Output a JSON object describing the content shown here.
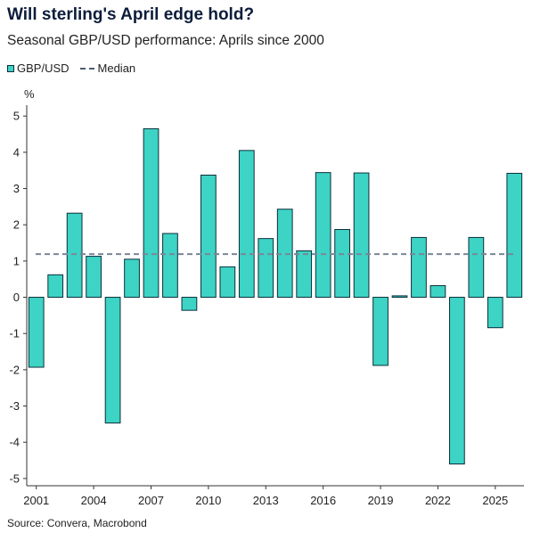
{
  "chart_data": {
    "type": "bar",
    "title": "Will sterling's April edge hold?",
    "subtitle": "Seasonal GBP/USD performance: Aprils since 2000",
    "ylabel": "%",
    "xlabel": "",
    "source": "Source: Convera, Macrobond",
    "ylim": [
      -5.2,
      5.3
    ],
    "yticks": [
      "5",
      "4",
      "3",
      "2",
      "1",
      "0",
      "-1",
      "-2",
      "-3",
      "-4",
      "-5"
    ],
    "ytick_values": [
      5,
      4,
      3,
      2,
      1,
      0,
      -1,
      -2,
      -3,
      -4,
      -5
    ],
    "xticks": [
      "2001",
      "2004",
      "2007",
      "2010",
      "2013",
      "2016",
      "2019",
      "2022",
      "2025"
    ],
    "xtick_values": [
      2001,
      2004,
      2007,
      2010,
      2013,
      2016,
      2019,
      2022,
      2025
    ],
    "x": [
      2001,
      2002,
      2003,
      2004,
      2005,
      2006,
      2007,
      2008,
      2009,
      2010,
      2011,
      2012,
      2013,
      2014,
      2015,
      2016,
      2017,
      2018,
      2019,
      2020,
      2021,
      2022,
      2023,
      2024,
      2025
    ],
    "series": [
      {
        "name": "GBP/USD",
        "color": "#3dd3c5",
        "values": [
          -1.93,
          0.62,
          2.32,
          1.13,
          -3.47,
          1.05,
          4.65,
          1.76,
          -0.36,
          3.37,
          0.84,
          4.05,
          1.62,
          2.43,
          1.28,
          3.44,
          1.87,
          3.43,
          -1.88,
          0.04,
          1.65,
          0.32,
          -4.6,
          1.65,
          -0.84
        ]
      }
    ],
    "x_values_override": [
      2001,
      2002,
      2003,
      2004,
      2005,
      2006,
      2007,
      2008,
      2009,
      2010,
      2011,
      2012,
      2013,
      2014,
      2015,
      2016,
      2017,
      2018,
      2019,
      2020,
      2021,
      2022,
      2023,
      2024,
      2025,
      2026
    ],
    "values_override": [
      -1.93,
      0.62,
      2.32,
      1.13,
      -3.47,
      1.05,
      4.65,
      1.76,
      -0.36,
      3.37,
      0.84,
      4.05,
      1.62,
      2.43,
      1.28,
      3.44,
      1.87,
      3.43,
      -1.88,
      0.04,
      1.65,
      0.32,
      -4.6,
      1.65,
      -0.84,
      3.42
    ],
    "median": {
      "name": "Median",
      "value": 1.19,
      "color": "#7a8799"
    },
    "grid": false,
    "legend": "top-left"
  }
}
